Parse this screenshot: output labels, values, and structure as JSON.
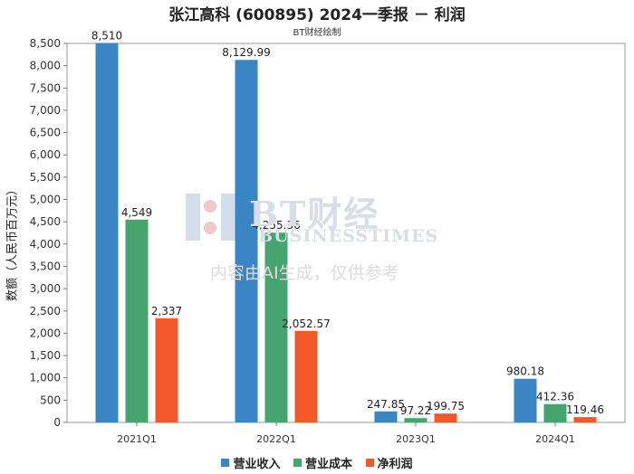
{
  "title": "张江高科 (600895) 2024一季报 － 利润",
  "subtitle": "BT财经绘制",
  "watermark": {
    "main": "BT财经",
    "sub": "BUSINESSTIMES",
    "notice": "内容由AI生成，仅供参考"
  },
  "colors": {
    "营业收入": "#3a86c4",
    "营业成本": "#46a56e",
    "净利润": "#f1592a"
  },
  "chart_data": {
    "type": "bar",
    "title": "张江高科 (600895) 2024一季报 － 利润",
    "subtitle": "BT财经绘制",
    "xlabel": "",
    "ylabel": "数额（人民币百万元）",
    "ylim": [
      0,
      8500
    ],
    "ytick_step": 500,
    "yticks": [
      "0",
      "500",
      "1,000",
      "1,500",
      "2,000",
      "2,500",
      "3,000",
      "3,500",
      "4,000",
      "4,500",
      "5,000",
      "5,500",
      "6,000",
      "6,500",
      "7,000",
      "7,500",
      "8,000",
      "8,500"
    ],
    "categories": [
      "2021Q1",
      "2022Q1",
      "2023Q1",
      "2024Q1"
    ],
    "series": [
      {
        "name": "营业收入",
        "values": [
          8510,
          8129.99,
          247.85,
          980.18
        ],
        "labels": [
          "8,510",
          "8,129.99",
          "247.85",
          "980.18"
        ]
      },
      {
        "name": "营业成本",
        "values": [
          4549,
          4255.36,
          97.22,
          412.36
        ],
        "labels": [
          "4,549",
          "4,255.36",
          "97.22",
          "412.36"
        ]
      },
      {
        "name": "净利润",
        "values": [
          2337,
          2052.57,
          199.75,
          119.46
        ],
        "labels": [
          "2,337",
          "2,052.57",
          "199.75",
          "119.46"
        ]
      }
    ],
    "legend": "bottom",
    "grid": false
  }
}
